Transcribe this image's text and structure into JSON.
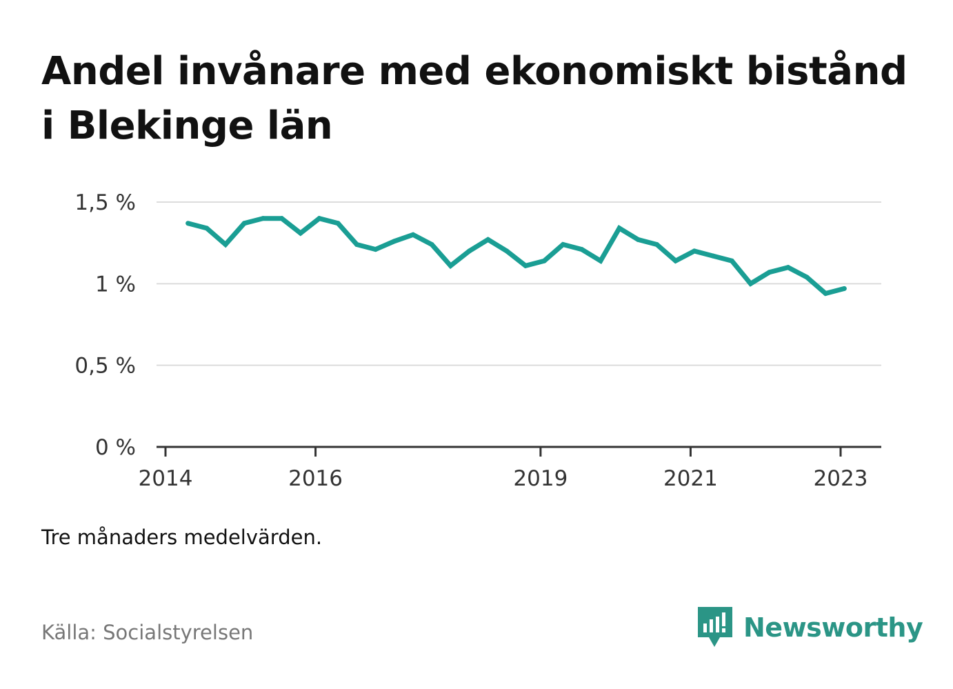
{
  "title": "Andel invånare med ekonomiskt bistånd i Blekinge län",
  "note": "Tre månaders medelvärden.",
  "source": "Källa: Socialstyrelsen",
  "brand": {
    "name": "Newsworthy",
    "color": "#2b9586",
    "icon": "newsworthy-logo-icon"
  },
  "chart_data": {
    "type": "line",
    "title": "Andel invånare med ekonomiskt bistånd i Blekinge län",
    "xlabel": "",
    "ylabel": "",
    "color": "#1a9e94",
    "ylim": [
      0,
      1.5
    ],
    "y_ticks": [
      {
        "value": 0,
        "label": "0 %"
      },
      {
        "value": 0.5,
        "label": "0,5 %"
      },
      {
        "value": 1,
        "label": "1 %"
      },
      {
        "value": 1.5,
        "label": "1,5 %"
      }
    ],
    "x_ticks": [
      {
        "value": 2014,
        "label": "2014"
      },
      {
        "value": 2016,
        "label": "2016"
      },
      {
        "value": 2019,
        "label": "2019"
      },
      {
        "value": 2021,
        "label": "2021"
      },
      {
        "value": 2023,
        "label": "2023"
      }
    ],
    "grid": true,
    "x": [
      2014.3,
      2014.55,
      2014.8,
      2015.05,
      2015.3,
      2015.55,
      2015.8,
      2016.05,
      2016.3,
      2016.55,
      2016.8,
      2017.05,
      2017.3,
      2017.55,
      2017.8,
      2018.05,
      2018.3,
      2018.55,
      2018.8,
      2019.05,
      2019.3,
      2019.55,
      2019.8,
      2020.05,
      2020.3,
      2020.55,
      2020.8,
      2021.05,
      2021.3,
      2021.55,
      2021.8,
      2022.05,
      2022.3,
      2022.55,
      2022.8,
      2023.05
    ],
    "values": [
      1.37,
      1.34,
      1.24,
      1.37,
      1.4,
      1.4,
      1.31,
      1.4,
      1.37,
      1.24,
      1.21,
      1.26,
      1.3,
      1.24,
      1.11,
      1.2,
      1.27,
      1.2,
      1.11,
      1.14,
      1.24,
      1.21,
      1.14,
      1.34,
      1.27,
      1.24,
      1.14,
      1.2,
      1.17,
      1.14,
      1.0,
      1.07,
      1.1,
      1.04,
      0.94,
      0.97
    ]
  }
}
